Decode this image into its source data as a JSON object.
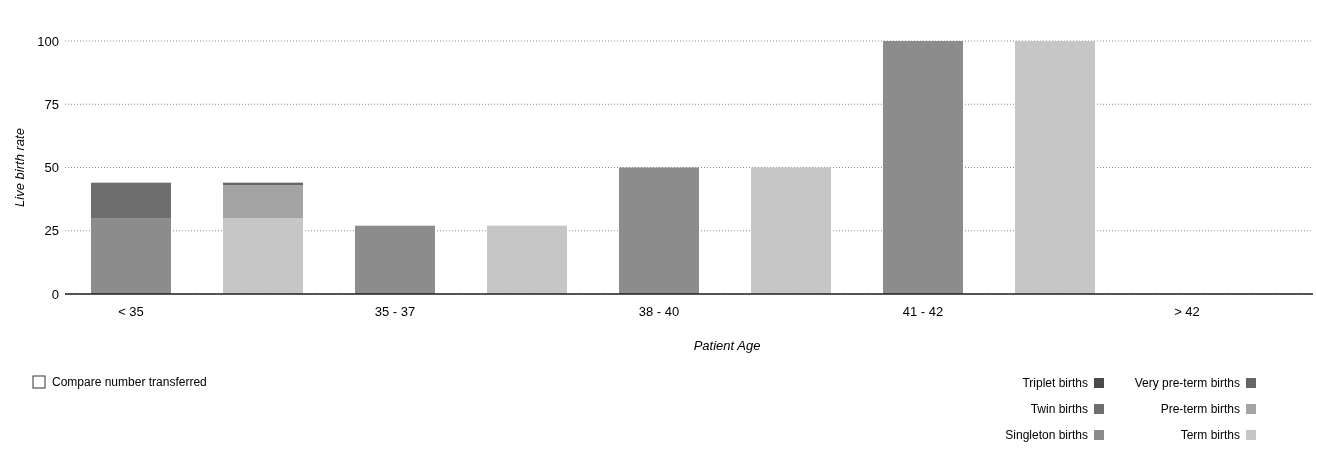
{
  "chart_data": {
    "type": "bar",
    "stacked": true,
    "xlabel": "Patient Age",
    "ylabel": "Live birth rate",
    "categories": [
      "< 35",
      null,
      "35 - 37",
      null,
      "38 - 40",
      null,
      "41 - 42",
      null,
      "> 42",
      null
    ],
    "series": [
      {
        "name": "Singleton births",
        "color": "#8c8c8c",
        "values": [
          30,
          null,
          27,
          null,
          50,
          null,
          100,
          null,
          0,
          null
        ]
      },
      {
        "name": "Twin births",
        "color": "#6e6e6e",
        "values": [
          14,
          null,
          0,
          null,
          0,
          null,
          0,
          null,
          0,
          null
        ]
      },
      {
        "name": "Triplet births",
        "color": "#4a4a4a",
        "values": [
          0,
          null,
          0,
          null,
          0,
          null,
          0,
          null,
          0,
          null
        ]
      },
      {
        "name": "Term births",
        "color": "#c6c6c6",
        "values": [
          null,
          30,
          null,
          27,
          null,
          50,
          null,
          100,
          null,
          0
        ]
      },
      {
        "name": "Pre-term births",
        "color": "#a4a4a4",
        "values": [
          null,
          13,
          null,
          0,
          null,
          0,
          null,
          0,
          null,
          0
        ]
      },
      {
        "name": "Very pre-term births",
        "color": "#666666",
        "values": [
          null,
          1,
          null,
          0,
          null,
          0,
          null,
          0,
          null,
          0
        ]
      }
    ],
    "ylim": [
      0,
      100
    ],
    "yticks": [
      0,
      25,
      50,
      75,
      100
    ],
    "grid": "y",
    "legend": "bottom right",
    "annotations": [
      "Compare number transferred"
    ]
  }
}
